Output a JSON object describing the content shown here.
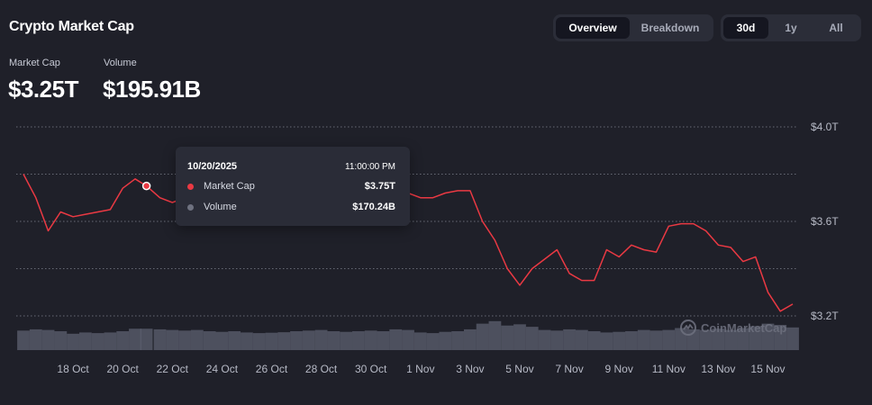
{
  "header": {
    "title": "Crypto Market Cap"
  },
  "view_tabs": [
    {
      "label": "Overview",
      "active": true
    },
    {
      "label": "Breakdown",
      "active": false
    }
  ],
  "range_tabs": [
    {
      "label": "30d",
      "active": true
    },
    {
      "label": "1y",
      "active": false
    },
    {
      "label": "All",
      "active": false
    }
  ],
  "stats": {
    "market_cap": {
      "label": "Market Cap",
      "value": "$3.25T"
    },
    "volume": {
      "label": "Volume",
      "value": "$195.91B"
    }
  },
  "tooltip": {
    "date": "10/20/2025",
    "time": "11:00:00 PM",
    "rows": [
      {
        "label": "Market Cap",
        "value": "$3.75T",
        "color": "#ea3943"
      },
      {
        "label": "Volume",
        "value": "$170.24B",
        "color": "#6f7280"
      }
    ]
  },
  "watermark": {
    "text": "CoinMarketCap",
    "icon": "coinmarketcap-logo-icon"
  },
  "colors": {
    "background": "#1f2029",
    "line": "#ea3943",
    "up_marker": "#16c784",
    "grid": "#7a7d88",
    "volume_bar": "#5d6070",
    "axis_text": "#b7bac6"
  },
  "chart_data": {
    "type": "line",
    "series": [
      {
        "name": "Market Cap",
        "unit": "T USD",
        "x": [
          "2025-10-16 00:00",
          "2025-10-16 12:00",
          "2025-10-17 00:00",
          "2025-10-17 12:00",
          "2025-10-18 00:00",
          "2025-10-18 12:00",
          "2025-10-19 00:00",
          "2025-10-19 12:00",
          "2025-10-20 00:00",
          "2025-10-20 12:00",
          "2025-10-20 23:00",
          "2025-10-21 12:00",
          "2025-10-22 00:00",
          "2025-10-22 12:00",
          "2025-10-23 00:00",
          "2025-10-23 12:00",
          "2025-10-24 00:00",
          "2025-10-24 12:00",
          "2025-10-25 00:00",
          "2025-10-25 12:00",
          "2025-10-26 00:00",
          "2025-10-26 12:00",
          "2025-10-27 00:00",
          "2025-10-27 12:00",
          "2025-10-28 00:00",
          "2025-10-28 12:00",
          "2025-10-29 00:00",
          "2025-10-29 12:00",
          "2025-10-30 00:00",
          "2025-10-30 12:00",
          "2025-10-31 00:00",
          "2025-10-31 12:00",
          "2025-11-01 00:00",
          "2025-11-01 12:00",
          "2025-11-02 00:00",
          "2025-11-02 12:00",
          "2025-11-03 00:00",
          "2025-11-03 12:00",
          "2025-11-04 00:00",
          "2025-11-04 12:00",
          "2025-11-05 00:00",
          "2025-11-05 12:00",
          "2025-11-06 00:00",
          "2025-11-06 12:00",
          "2025-11-07 00:00",
          "2025-11-07 12:00",
          "2025-11-08 00:00",
          "2025-11-08 12:00",
          "2025-11-09 00:00",
          "2025-11-09 12:00",
          "2025-11-10 00:00",
          "2025-11-10 12:00",
          "2025-11-11 00:00",
          "2025-11-11 12:00",
          "2025-11-12 00:00",
          "2025-11-12 12:00",
          "2025-11-13 00:00",
          "2025-11-13 12:00",
          "2025-11-14 00:00",
          "2025-11-14 12:00",
          "2025-11-15 00:00",
          "2025-11-15 12:00",
          "2025-11-16 00:00"
        ],
        "values": [
          3.8,
          3.7,
          3.56,
          3.64,
          3.62,
          3.63,
          3.64,
          3.65,
          3.74,
          3.78,
          3.75,
          3.7,
          3.68,
          3.7,
          3.71,
          3.72,
          3.73,
          3.74,
          3.74,
          3.73,
          3.73,
          3.72,
          3.72,
          3.71,
          3.72,
          3.73,
          3.73,
          3.71,
          3.7,
          3.7,
          3.71,
          3.72,
          3.7,
          3.7,
          3.72,
          3.73,
          3.73,
          3.6,
          3.52,
          3.4,
          3.33,
          3.4,
          3.44,
          3.48,
          3.38,
          3.35,
          3.35,
          3.48,
          3.45,
          3.5,
          3.48,
          3.47,
          3.58,
          3.59,
          3.59,
          3.56,
          3.5,
          3.49,
          3.43,
          3.45,
          3.3,
          3.22,
          3.25
        ]
      }
    ],
    "volume": {
      "name": "Volume",
      "unit": "B USD",
      "values": [
        155,
        165,
        160,
        150,
        130,
        140,
        135,
        140,
        150,
        170,
        170,
        165,
        160,
        155,
        160,
        150,
        145,
        150,
        140,
        135,
        138,
        142,
        150,
        155,
        160,
        150,
        145,
        150,
        155,
        150,
        165,
        160,
        140,
        135,
        145,
        150,
        165,
        210,
        230,
        195,
        205,
        185,
        160,
        155,
        165,
        160,
        150,
        140,
        145,
        150,
        160,
        155,
        160,
        175,
        165,
        160,
        170,
        160,
        175,
        190,
        210,
        200,
        180
      ]
    },
    "x_ticks": [
      "18 Oct",
      "20 Oct",
      "22 Oct",
      "24 Oct",
      "26 Oct",
      "28 Oct",
      "30 Oct",
      "1 Nov",
      "3 Nov",
      "5 Nov",
      "7 Nov",
      "9 Nov",
      "11 Nov",
      "13 Nov",
      "15 Nov"
    ],
    "y_ticks": [
      "$4.0T",
      "$3.6T",
      "$3.2T"
    ],
    "y_tick_values": [
      4.0,
      3.6,
      3.2
    ],
    "ylim": [
      3.2,
      4.0
    ],
    "grid": true
  }
}
